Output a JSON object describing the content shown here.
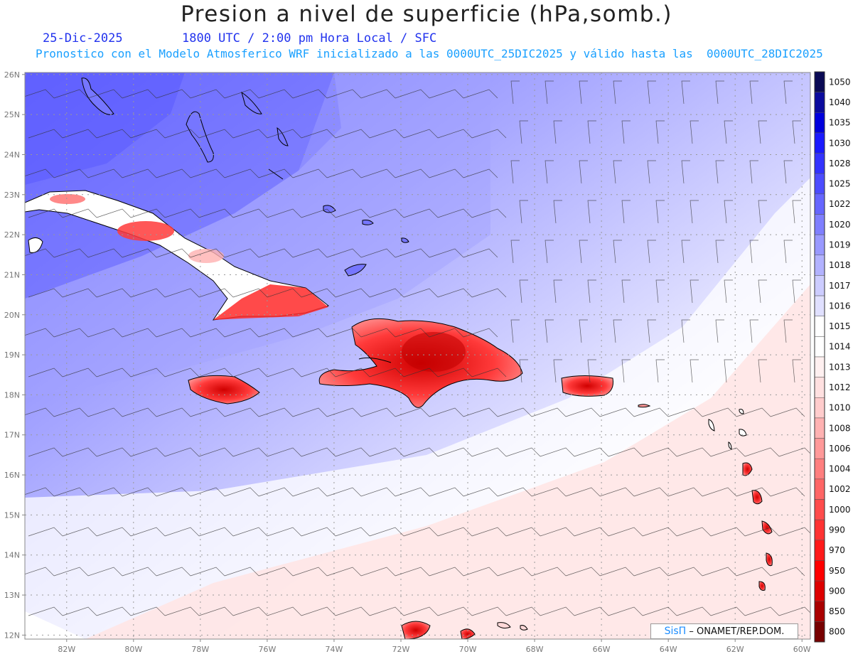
{
  "title": "Presion a nivel de superficie (hPa,somb.)",
  "date_label": "25-Dic-2025",
  "time_label": "1800 UTC / 2:00 pm Hora Local / SFC",
  "forecast_label": "Pronostico con el Modelo Atmosferico WRF inicializado a las 0000UTC_25DIC2025 y válido hasta las  0000UTC_28DIC2025",
  "credit": {
    "logo": "SisΠ",
    "text": "– ONAMET/REP.DOM."
  },
  "axes": {
    "lat_labels": [
      "26N",
      "25N",
      "24N",
      "23N",
      "22N",
      "21N",
      "20N",
      "19N",
      "18N",
      "17N",
      "16N",
      "15N",
      "14N",
      "13N",
      "12N"
    ],
    "lon_labels": [
      "82W",
      "80W",
      "78W",
      "76W",
      "74W",
      "72W",
      "70W",
      "68W",
      "66W",
      "64W",
      "62W",
      "60W"
    ]
  },
  "colorbar": {
    "levels": [
      "1050",
      "1040",
      "1035",
      "1030",
      "1028",
      "1025",
      "1022",
      "1020",
      "1019",
      "1018",
      "1017",
      "1016",
      "1015",
      "1014",
      "1013",
      "1012",
      "1010",
      "1008",
      "1006",
      "1004",
      "1002",
      "1000",
      "990",
      "970",
      "950",
      "900",
      "850",
      "800"
    ],
    "colors": [
      "#0a0a55",
      "#0b0b9e",
      "#0000dd",
      "#1a1aff",
      "#3333ff",
      "#4c4cff",
      "#6666ff",
      "#7f7fff",
      "#9999ff",
      "#b2b2ff",
      "#ccccff",
      "#e0e0ff",
      "#ffffff",
      "#ffffff",
      "#fff0f0",
      "#ffe0e0",
      "#ffcccc",
      "#ffb2b2",
      "#ff9999",
      "#ff7f7f",
      "#ff6666",
      "#ff4c4c",
      "#ff3333",
      "#ff1a1a",
      "#ff0000",
      "#dd0000",
      "#aa0000",
      "#770000"
    ]
  }
}
